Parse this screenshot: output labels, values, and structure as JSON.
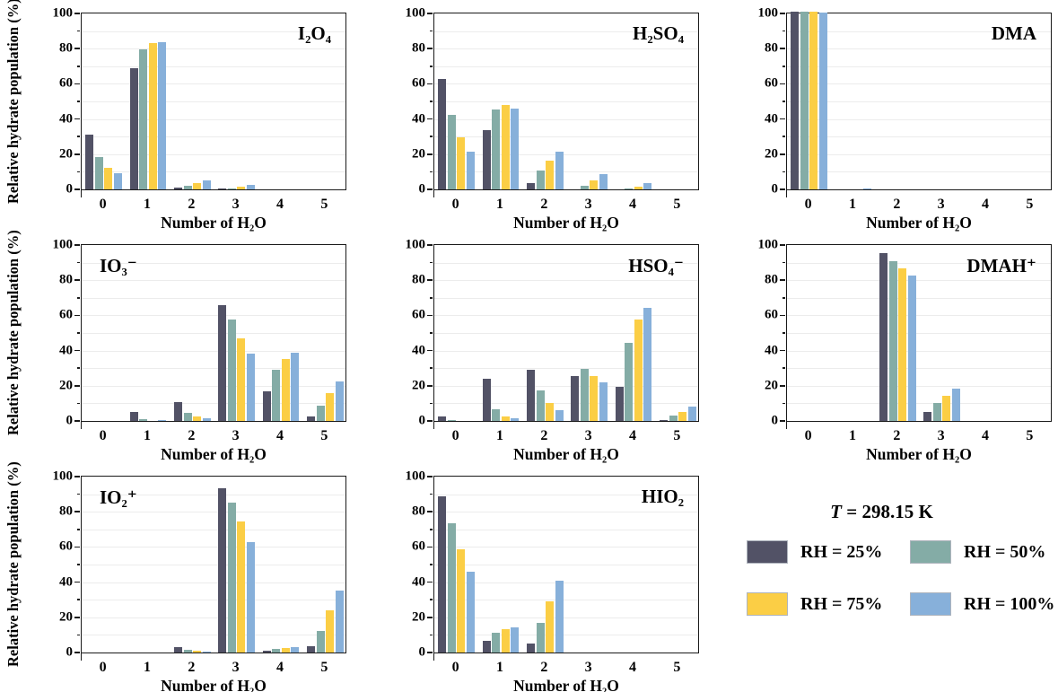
{
  "figure": {
    "ylabel": "Relative hydrate population (%)",
    "xlabel": "Number of H₂O",
    "ytick_labels": [
      "0",
      "20",
      "40",
      "60",
      "80",
      "100"
    ],
    "ytick_values": [
      0,
      20,
      40,
      60,
      80,
      100
    ],
    "yminor_values": [
      10,
      30,
      50,
      70,
      90
    ],
    "gridline_values": [
      10,
      20,
      30,
      40,
      50,
      60,
      70,
      80,
      90
    ],
    "background_color": "#ffffff",
    "axis_color": "#1a1a1a",
    "gridline_color": "#ececec"
  },
  "legend": {
    "temperature_prefix": "T",
    "temperature_rest": " = 298.15 K",
    "items": [
      {
        "label": "RH = 25%",
        "color": "#525266"
      },
      {
        "label": "RH = 50%",
        "color": "#84aca6"
      },
      {
        "label": "RH = 75%",
        "color": "#fbce45"
      },
      {
        "label": "RH = 100%",
        "color": "#87b0da"
      }
    ]
  },
  "chart_data": [
    {
      "type": "bar",
      "title": "I₂O₄",
      "title_pos": "right",
      "show_ylabel": true,
      "xlabel": "Number of H₂O",
      "ylabel": "Relative hydrate population (%)",
      "ylim": [
        0,
        100
      ],
      "categories": [
        "0",
        "1",
        "2",
        "3",
        "4",
        "5"
      ],
      "series": [
        {
          "name": "RH = 25%",
          "values": [
            31,
            68,
            1,
            0.5,
            0,
            0
          ]
        },
        {
          "name": "RH = 50%",
          "values": [
            18,
            79,
            2,
            0.5,
            0,
            0
          ]
        },
        {
          "name": "RH = 75%",
          "values": [
            12,
            82.5,
            3.5,
            1.5,
            0,
            0
          ]
        },
        {
          "name": "RH = 100%",
          "values": [
            9,
            83,
            5,
            2.5,
            0,
            0
          ]
        }
      ]
    },
    {
      "type": "bar",
      "title": "H₂SO₄",
      "title_pos": "right",
      "show_ylabel": false,
      "xlabel": "Number of H₂O",
      "ylim": [
        0,
        100
      ],
      "categories": [
        "0",
        "1",
        "2",
        "3",
        "4",
        "5"
      ],
      "series": [
        {
          "name": "RH = 25%",
          "values": [
            62,
            33.5,
            3.5,
            0,
            0,
            0
          ]
        },
        {
          "name": "RH = 50%",
          "values": [
            42,
            45,
            10.5,
            2,
            0.5,
            0
          ]
        },
        {
          "name": "RH = 75%",
          "values": [
            29.5,
            47.5,
            16,
            5,
            1.5,
            0
          ]
        },
        {
          "name": "RH = 100%",
          "values": [
            21,
            45.5,
            21,
            8.5,
            3.5,
            0
          ]
        }
      ]
    },
    {
      "type": "bar",
      "title": "DMA",
      "title_pos": "right",
      "show_ylabel": false,
      "xlabel": "Number of H₂O",
      "ylim": [
        0,
        100
      ],
      "categories": [
        "0",
        "1",
        "2",
        "3",
        "4",
        "5"
      ],
      "series": [
        {
          "name": "RH = 25%",
          "values": [
            100,
            0,
            0,
            0,
            0,
            0
          ]
        },
        {
          "name": "RH = 50%",
          "values": [
            100,
            0,
            0,
            0,
            0,
            0
          ]
        },
        {
          "name": "RH = 75%",
          "values": [
            100,
            0,
            0,
            0,
            0,
            0
          ]
        },
        {
          "name": "RH = 100%",
          "values": [
            99.5,
            0.5,
            0,
            0,
            0,
            0
          ]
        }
      ]
    },
    {
      "type": "bar",
      "title": "IO₃⁻",
      "title_pos": "left",
      "show_ylabel": true,
      "xlabel": "Number of H₂O",
      "ylabel": "Relative hydrate population (%)",
      "ylim": [
        0,
        100
      ],
      "categories": [
        "0",
        "1",
        "2",
        "3",
        "4",
        "5"
      ],
      "series": [
        {
          "name": "RH = 25%",
          "values": [
            0,
            5,
            10.5,
            65,
            16.5,
            2.5
          ]
        },
        {
          "name": "RH = 50%",
          "values": [
            0,
            1,
            4.5,
            57,
            29,
            8.5
          ]
        },
        {
          "name": "RH = 75%",
          "values": [
            0,
            0,
            2.5,
            46.5,
            35,
            15.5
          ]
        },
        {
          "name": "RH = 100%",
          "values": [
            0,
            0.5,
            1.5,
            38,
            38.5,
            22
          ]
        }
      ]
    },
    {
      "type": "bar",
      "title": "HSO₄⁻",
      "title_pos": "right",
      "show_ylabel": false,
      "xlabel": "Number of H₂O",
      "ylim": [
        0,
        100
      ],
      "categories": [
        "0",
        "1",
        "2",
        "3",
        "4",
        "5"
      ],
      "series": [
        {
          "name": "RH = 25%",
          "values": [
            2.5,
            23.5,
            29,
            25.5,
            19,
            0.5
          ]
        },
        {
          "name": "RH = 50%",
          "values": [
            0.5,
            6.5,
            17,
            29.5,
            44,
            3
          ]
        },
        {
          "name": "RH = 75%",
          "values": [
            0,
            2.5,
            10,
            25.5,
            57,
            5
          ]
        },
        {
          "name": "RH = 100%",
          "values": [
            0,
            1.5,
            6,
            21.5,
            63.5,
            8
          ]
        }
      ]
    },
    {
      "type": "bar",
      "title": "DMAH⁺",
      "title_pos": "right",
      "show_ylabel": false,
      "xlabel": "Number of H₂O",
      "ylim": [
        0,
        100
      ],
      "categories": [
        "0",
        "1",
        "2",
        "3",
        "4",
        "5"
      ],
      "series": [
        {
          "name": "RH = 25%",
          "values": [
            0,
            0,
            94.5,
            5,
            0,
            0
          ]
        },
        {
          "name": "RH = 50%",
          "values": [
            0,
            0,
            90,
            10,
            0,
            0
          ]
        },
        {
          "name": "RH = 75%",
          "values": [
            0,
            0,
            86,
            14,
            0,
            0
          ]
        },
        {
          "name": "RH = 100%",
          "values": [
            0,
            0,
            82,
            18,
            0,
            0
          ]
        }
      ]
    },
    {
      "type": "bar",
      "title": "IO₂⁺",
      "title_pos": "left",
      "show_ylabel": true,
      "xlabel": "Number of H₂O",
      "ylabel": "Relative hydrate population (%)",
      "ylim": [
        0,
        100
      ],
      "categories": [
        "0",
        "1",
        "2",
        "3",
        "4",
        "5"
      ],
      "series": [
        {
          "name": "RH = 25%",
          "values": [
            0,
            0,
            3,
            92.5,
            1,
            3.5
          ]
        },
        {
          "name": "RH = 50%",
          "values": [
            0,
            0,
            1.5,
            84.5,
            2,
            12
          ]
        },
        {
          "name": "RH = 75%",
          "values": [
            0,
            0,
            1,
            73.5,
            2.5,
            23.5
          ]
        },
        {
          "name": "RH = 100%",
          "values": [
            0,
            0,
            0.5,
            62,
            3,
            35
          ]
        }
      ]
    },
    {
      "type": "bar",
      "title": "HIO₂",
      "title_pos": "right",
      "show_ylabel": false,
      "xlabel": "Number of H₂O",
      "ylim": [
        0,
        100
      ],
      "categories": [
        "0",
        "1",
        "2",
        "3",
        "4",
        "5"
      ],
      "series": [
        {
          "name": "RH = 25%",
          "values": [
            88,
            6.5,
            5,
            0,
            0,
            0
          ]
        },
        {
          "name": "RH = 50%",
          "values": [
            72.5,
            11,
            16.5,
            0,
            0,
            0
          ]
        },
        {
          "name": "RH = 75%",
          "values": [
            58,
            13,
            29,
            0,
            0,
            0
          ]
        },
        {
          "name": "RH = 100%",
          "values": [
            45.5,
            14,
            40.5,
            0,
            0,
            0
          ]
        }
      ]
    }
  ]
}
